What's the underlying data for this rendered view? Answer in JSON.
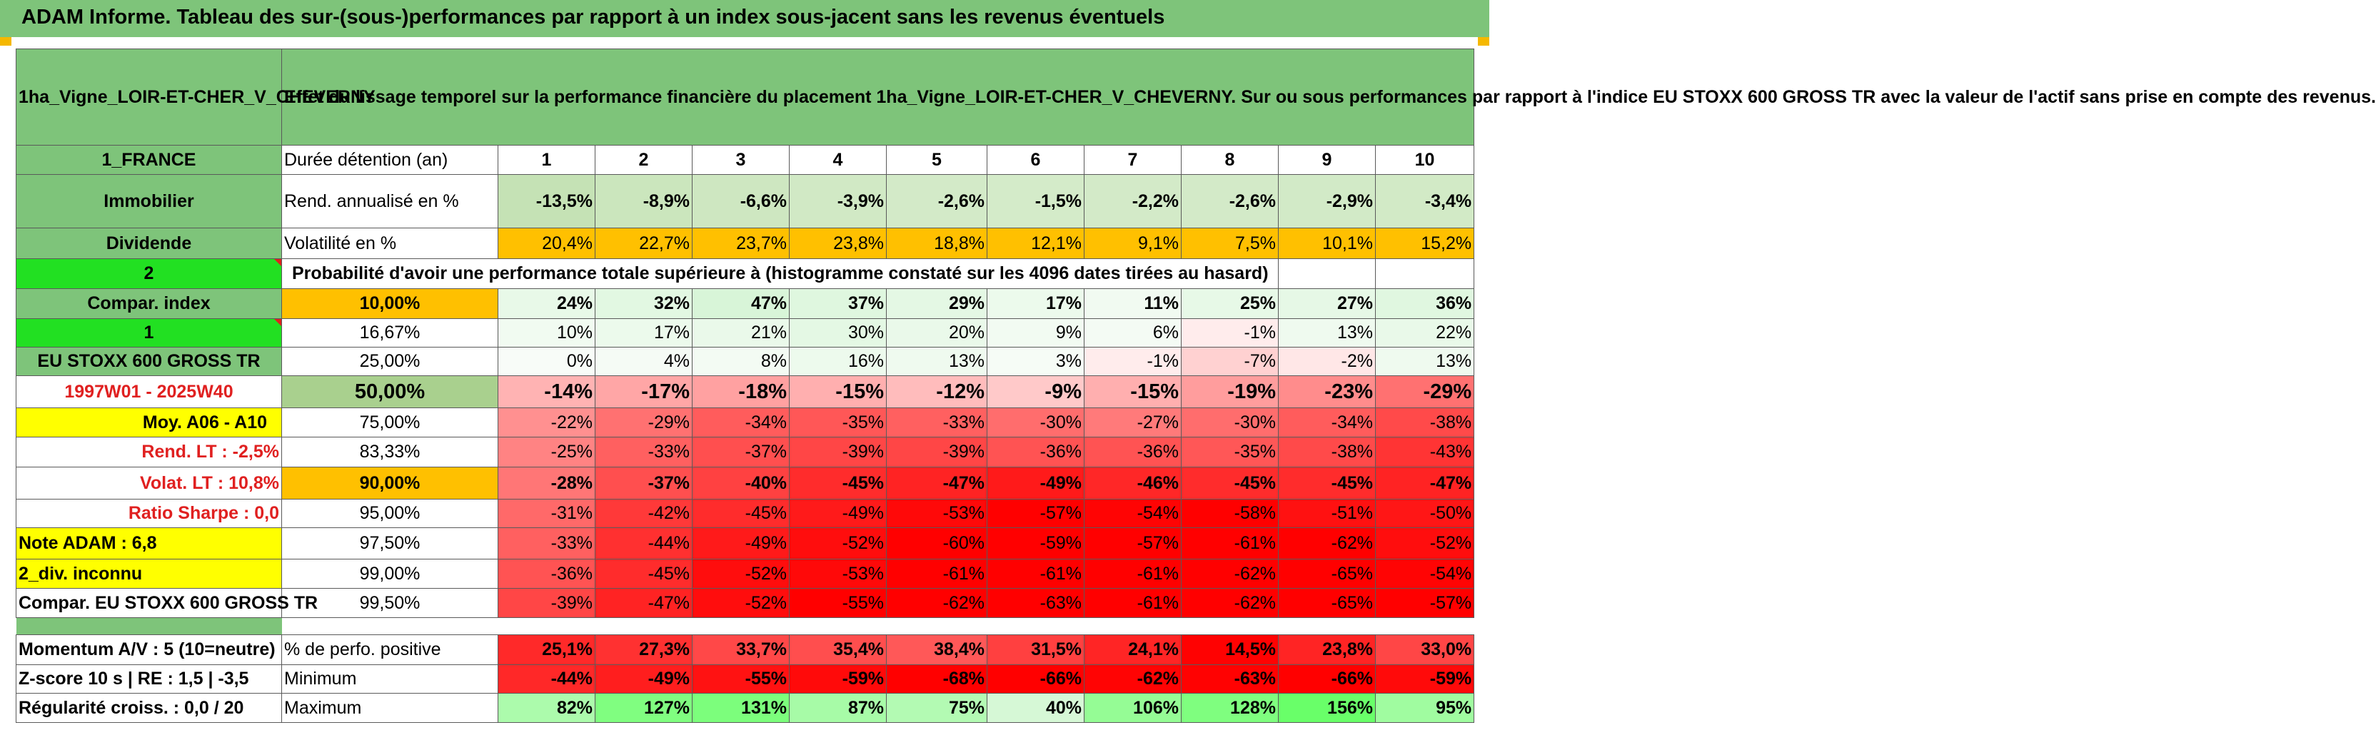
{
  "title": "ADAM Informe. Tableau des sur-(sous-)performances par rapport à un index sous-jacent sans les revenus éventuels",
  "colors": {
    "header_green": "#7ec47a",
    "bright_green": "#22e022",
    "yellow": "#ffff00",
    "orange": "#ffc000",
    "red_text": "#e02020"
  },
  "header": {
    "asset_name": "1ha_Vigne_LOIR-ET-CHER_V_CHEVERNY",
    "description": "Effet du lissage temporel sur la performance financière du placement 1ha_Vigne_LOIR-ET-CHER_V_CHEVERNY. Sur ou sous performances par rapport à l'indice EU STOXX 600 GROSS TR avec la valeur de l'actif sans prise en compte des revenus."
  },
  "side": {
    "country": "1_FRANCE",
    "category": "Immobilier",
    "dividend": "Dividende",
    "two": "2",
    "compar_index": "Compar. index",
    "one": "1",
    "index_name": "EU STOXX 600 GROSS TR",
    "period": "1997W01 - 2025W40",
    "moy": "Moy. A06 - A10",
    "rend_lt": "Rend. LT :    -2,5%",
    "volat_lt": "Volat. LT :   10,8%",
    "sharpe": "Ratio Sharpe :    0,0",
    "note": "Note ADAM : 6,8",
    "div_info": "2_div. inconnu",
    "compar_full": "Compar. EU STOXX 600 GROSS TR",
    "momentum": "Momentum A/V : 5 (10=neutre)",
    "zscore": "Z-score 10 s | RE : 1,5 | -3,5",
    "regularite": "Régularité croiss. : 0,0 / 20"
  },
  "labels": {
    "duree": "Durée détention (an)",
    "rend": "Rend. annualisé en %",
    "vol": "Volatilité en %",
    "proba": "Probabilité d'avoir une performance totale supérieure à (histogramme constaté sur les 4096 dates tirées au hasard)",
    "perf_pos": "% de perfo. positive",
    "minimum": "Minimum",
    "maximum": "Maximum"
  },
  "years": [
    "1",
    "2",
    "3",
    "4",
    "5",
    "6",
    "7",
    "8",
    "9",
    "10"
  ],
  "rend": [
    "-13,5%",
    "-8,9%",
    "-6,6%",
    "-3,9%",
    "-2,6%",
    "-1,5%",
    "-2,2%",
    "-2,6%",
    "-2,9%",
    "-3,4%"
  ],
  "vol": [
    "20,4%",
    "22,7%",
    "23,7%",
    "23,8%",
    "18,8%",
    "12,1%",
    "9,1%",
    "7,5%",
    "10,1%",
    "15,2%"
  ],
  "percentiles": [
    {
      "p": "10,00%",
      "values": [
        "24%",
        "32%",
        "47%",
        "37%",
        "29%",
        "17%",
        "11%",
        "25%",
        "27%",
        "36%"
      ]
    },
    {
      "p": "16,67%",
      "values": [
        "10%",
        "17%",
        "21%",
        "30%",
        "20%",
        "9%",
        "6%",
        "-1%",
        "13%",
        "22%"
      ]
    },
    {
      "p": "25,00%",
      "values": [
        "0%",
        "4%",
        "8%",
        "16%",
        "13%",
        "3%",
        "-1%",
        "-7%",
        "-2%",
        "13%"
      ]
    },
    {
      "p": "50,00%",
      "values": [
        "-14%",
        "-17%",
        "-18%",
        "-15%",
        "-12%",
        "-9%",
        "-15%",
        "-19%",
        "-23%",
        "-29%"
      ]
    },
    {
      "p": "75,00%",
      "values": [
        "-22%",
        "-29%",
        "-34%",
        "-35%",
        "-33%",
        "-30%",
        "-27%",
        "-30%",
        "-34%",
        "-38%"
      ]
    },
    {
      "p": "83,33%",
      "values": [
        "-25%",
        "-33%",
        "-37%",
        "-39%",
        "-39%",
        "-36%",
        "-36%",
        "-35%",
        "-38%",
        "-43%"
      ]
    },
    {
      "p": "90,00%",
      "values": [
        "-28%",
        "-37%",
        "-40%",
        "-45%",
        "-47%",
        "-49%",
        "-46%",
        "-45%",
        "-45%",
        "-47%"
      ]
    },
    {
      "p": "95,00%",
      "values": [
        "-31%",
        "-42%",
        "-45%",
        "-49%",
        "-53%",
        "-57%",
        "-54%",
        "-58%",
        "-51%",
        "-50%"
      ]
    },
    {
      "p": "97,50%",
      "values": [
        "-33%",
        "-44%",
        "-49%",
        "-52%",
        "-60%",
        "-59%",
        "-57%",
        "-61%",
        "-62%",
        "-52%"
      ]
    },
    {
      "p": "99,00%",
      "values": [
        "-36%",
        "-45%",
        "-52%",
        "-53%",
        "-61%",
        "-61%",
        "-61%",
        "-62%",
        "-65%",
        "-54%"
      ]
    },
    {
      "p": "99,50%",
      "values": [
        "-39%",
        "-47%",
        "-52%",
        "-55%",
        "-62%",
        "-63%",
        "-61%",
        "-62%",
        "-65%",
        "-57%"
      ]
    }
  ],
  "perf_pos": [
    "25,1%",
    "27,3%",
    "33,7%",
    "35,4%",
    "38,4%",
    "31,5%",
    "24,1%",
    "14,5%",
    "23,8%",
    "33,0%"
  ],
  "minimum": [
    "-44%",
    "-49%",
    "-55%",
    "-59%",
    "-68%",
    "-66%",
    "-62%",
    "-63%",
    "-66%",
    "-59%"
  ],
  "maximum": [
    "82%",
    "127%",
    "131%",
    "87%",
    "75%",
    "40%",
    "106%",
    "128%",
    "156%",
    "95%"
  ]
}
